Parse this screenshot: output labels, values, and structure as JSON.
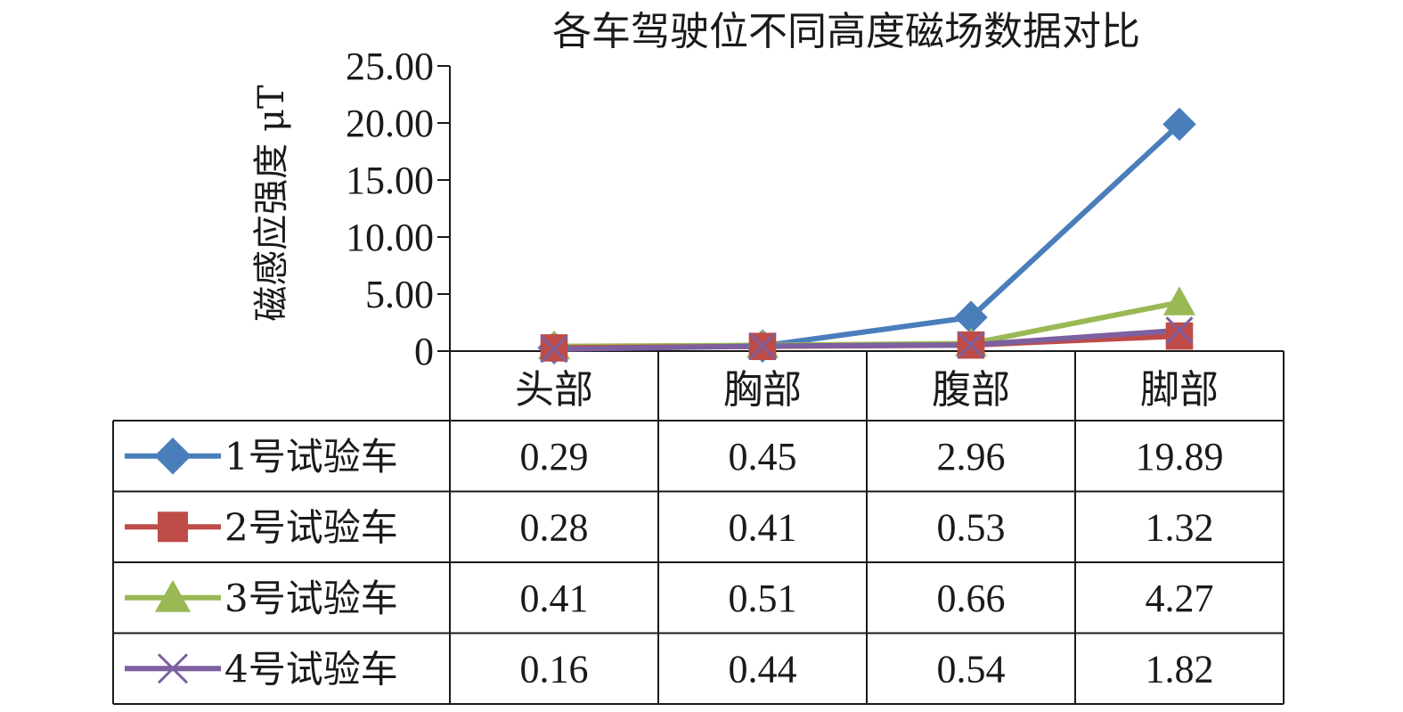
{
  "chart_data": {
    "type": "line",
    "title": "各车驾驶位不同高度磁场数据对比",
    "ylabel": "磁感应强度 μT",
    "xlabel": "",
    "ylim": [
      0,
      25
    ],
    "yticks": [
      "0",
      "5.00",
      "10.00",
      "15.00",
      "20.00",
      "25.00"
    ],
    "ytick_values": [
      0,
      5,
      10,
      15,
      20,
      25
    ],
    "categories": [
      "头部",
      "胸部",
      "腹部",
      "脚部"
    ],
    "legend": "data-table",
    "grid": false,
    "series": [
      {
        "name": "1号试验车",
        "color": "#4a7ebb",
        "marker": "diamond",
        "values": [
          0.29,
          0.45,
          2.96,
          19.89
        ],
        "labels": [
          "0.29",
          "0.45",
          "2.96",
          "19.89"
        ]
      },
      {
        "name": "2号试验车",
        "color": "#be4b48",
        "marker": "square",
        "values": [
          0.28,
          0.41,
          0.53,
          1.32
        ],
        "labels": [
          "0.28",
          "0.41",
          "0.53",
          "1.32"
        ]
      },
      {
        "name": "3号试验车",
        "color": "#98b954",
        "marker": "triangle",
        "values": [
          0.41,
          0.51,
          0.66,
          4.27
        ],
        "labels": [
          "0.41",
          "0.51",
          "0.66",
          "4.27"
        ]
      },
      {
        "name": "4号试验车",
        "color": "#7d60a0",
        "marker": "x",
        "values": [
          0.16,
          0.44,
          0.54,
          1.82
        ],
        "labels": [
          "0.16",
          "0.44",
          "0.54",
          "1.82"
        ]
      }
    ]
  }
}
